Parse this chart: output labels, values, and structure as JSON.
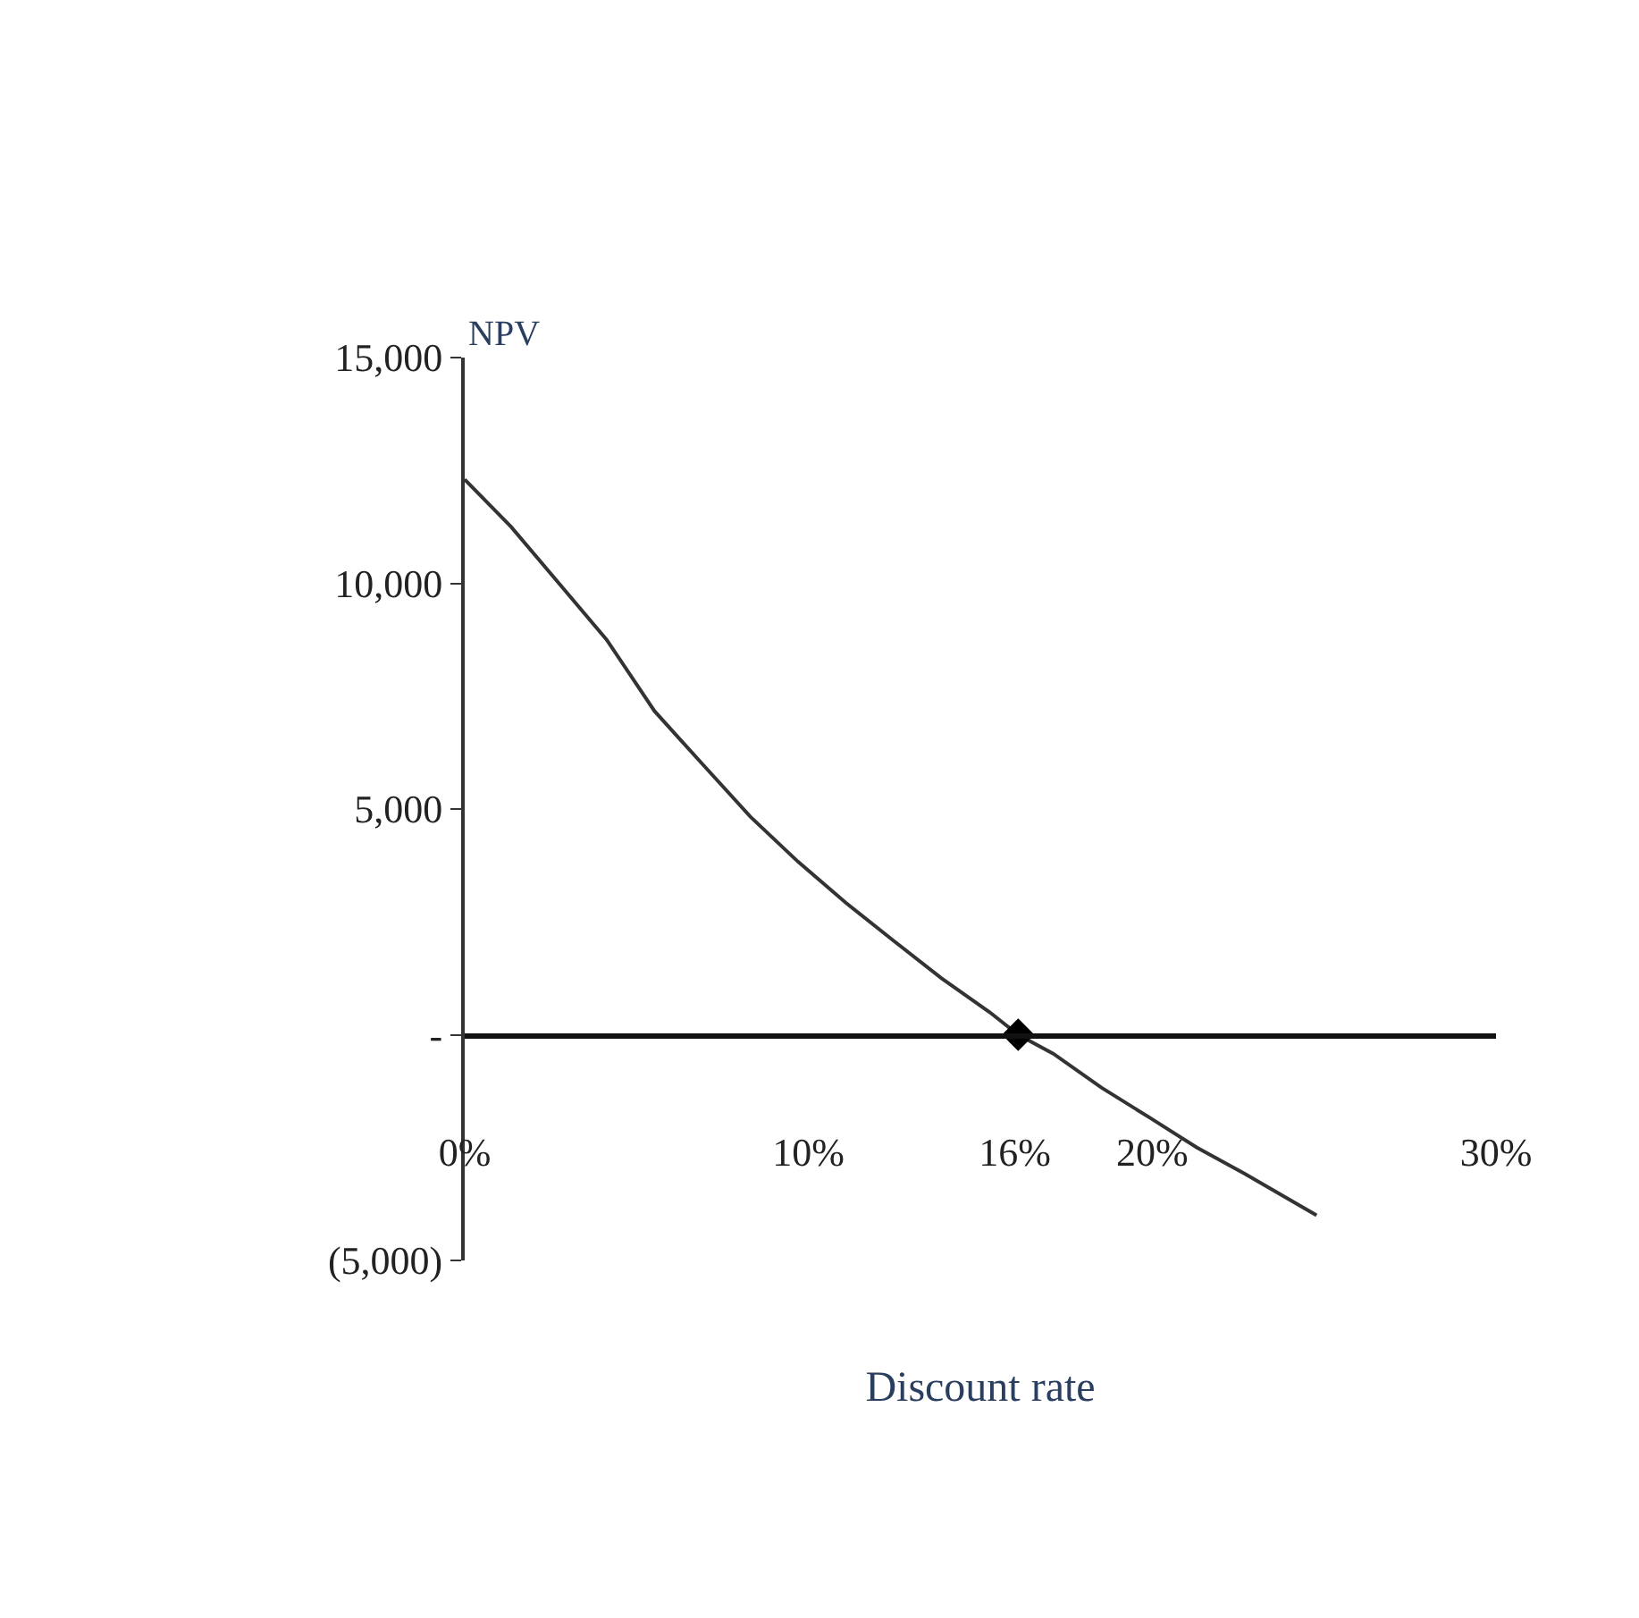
{
  "chart_data": {
    "type": "line",
    "xlabel": "Discount rate",
    "ylabel": "NPV",
    "xlim": [
      0,
      30
    ],
    "ylim": [
      -5000,
      15000
    ],
    "xticks": [
      {
        "value": 0,
        "label": "0%"
      },
      {
        "value": 10,
        "label": "10%"
      },
      {
        "value": 16,
        "label": "16%"
      },
      {
        "value": 20,
        "label": "20%"
      },
      {
        "value": 30,
        "label": "30%"
      }
    ],
    "yticks": [
      {
        "value": -5000,
        "label": "(5,000)"
      },
      {
        "value": 0,
        "label": "-"
      },
      {
        "value": 5000,
        "label": "5,000"
      },
      {
        "value": 10000,
        "label": "10,000"
      },
      {
        "value": 15000,
        "label": "15,000"
      }
    ],
    "series": [
      {
        "color": "#333333",
        "marker": "none",
        "line_style": "solid",
        "x": [
          0,
          1.35,
          2.74,
          4.13,
          5.52,
          6.91,
          8.31,
          9.7,
          11.09,
          12.48,
          13.87,
          15.27,
          16.1,
          17.12,
          18.52,
          19.91,
          21.3,
          22.69,
          24.78
        ],
        "values": [
          12300,
          11250,
          10000,
          8750,
          7170,
          6000,
          4830,
          3830,
          2920,
          2080,
          1250,
          500,
          0,
          -420,
          -1170,
          -1830,
          -2500,
          -3080,
          -4000
        ]
      },
      {
        "type": "scatter",
        "color": "#000000",
        "marker": "diamond",
        "x": [
          16.1
        ],
        "values": [
          0
        ]
      }
    ]
  }
}
